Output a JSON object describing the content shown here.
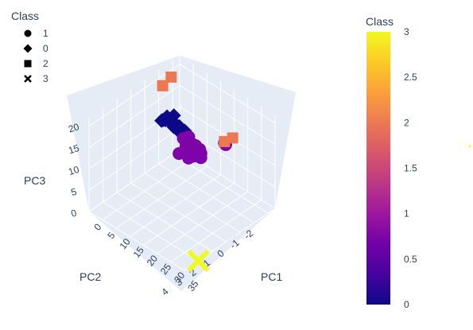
{
  "chart_data": {
    "type": "scatter3d",
    "legend": {
      "title": "Class",
      "entries": [
        {
          "label": "1",
          "symbol": "circle"
        },
        {
          "label": "0",
          "symbol": "diamond"
        },
        {
          "label": "2",
          "symbol": "square"
        },
        {
          "label": "3",
          "symbol": "x"
        }
      ]
    },
    "axes": {
      "x": {
        "label": "PC1",
        "ticks": [
          "0",
          "5",
          "10",
          "15",
          "20",
          "25",
          "30",
          "35"
        ]
      },
      "y": {
        "label": "PC2",
        "ticks": [
          "-2",
          "-1",
          "0",
          "1",
          "2",
          "3",
          "4"
        ]
      },
      "z": {
        "label": "PC3",
        "ticks": [
          "0",
          "5",
          "10",
          "15",
          "20"
        ]
      }
    },
    "colorbar": {
      "title": "Class",
      "range": [
        0,
        3
      ],
      "ticks": [
        "0",
        "0.5",
        "1",
        "1.5",
        "2",
        "2.5",
        "3"
      ],
      "colors": [
        "#0d0887",
        "#46039f",
        "#7201a8",
        "#9c179e",
        "#bd3786",
        "#d8576b",
        "#ed7953",
        "#fb9f3a",
        "#fdca26",
        "#f0f921"
      ]
    },
    "series": [
      {
        "name": "0",
        "symbol": "diamond",
        "color": "#0d0887",
        "points": [
          [
            0.5,
            -1.2,
            10
          ],
          [
            1,
            -1,
            10.5
          ],
          [
            1.5,
            -1.3,
            11
          ],
          [
            2,
            -1.1,
            10.8
          ],
          [
            2.5,
            -1.0,
            11.5
          ],
          [
            3,
            -1.2,
            11.2
          ],
          [
            3.5,
            -1.4,
            11.8
          ],
          [
            4,
            -1.1,
            11
          ],
          [
            4.5,
            -1.3,
            10.5
          ],
          [
            5,
            -1.2,
            10.2
          ],
          [
            5.5,
            -1.0,
            10.8
          ],
          [
            6,
            -1.3,
            10.5
          ],
          [
            6.5,
            -1.1,
            10.2
          ],
          [
            7,
            -1.2,
            10
          ],
          [
            7.5,
            -1.4,
            9.8
          ],
          [
            8,
            -1.2,
            10
          ],
          [
            3,
            -0.8,
            12
          ],
          [
            4,
            -0.9,
            12.5
          ],
          [
            2,
            -1.4,
            9.8
          ],
          [
            5,
            -1.5,
            9.5
          ],
          [
            6,
            -1.0,
            11.2
          ],
          [
            7,
            -1.1,
            10.8
          ]
        ]
      },
      {
        "name": "1",
        "symbol": "circle",
        "color": "#7e03a8",
        "points": [
          [
            9,
            -1,
            9.5
          ],
          [
            10,
            -1.2,
            9.8
          ],
          [
            11,
            -0.8,
            9
          ],
          [
            12,
            -1,
            9.5
          ],
          [
            13,
            -1.1,
            9.2
          ],
          [
            12,
            -0.6,
            8.5
          ],
          [
            14,
            -0.8,
            9
          ],
          [
            15,
            -1,
            9.3
          ],
          [
            13,
            -0.5,
            8.6
          ],
          [
            14,
            -0.4,
            8.2
          ],
          [
            16,
            -0.9,
            9
          ],
          [
            15,
            -0.6,
            8.6
          ],
          [
            17,
            -0.7,
            8.8
          ],
          [
            20,
            -1.8,
            11
          ],
          [
            21,
            -1.7,
            11.2
          ],
          [
            11,
            -0.3,
            8.3
          ]
        ]
      },
      {
        "name": "2",
        "symbol": "square",
        "color": "#ed7953",
        "points": [
          [
            2,
            -1.5,
            20
          ],
          [
            4,
            -0.5,
            21
          ],
          [
            20,
            -1.8,
            11.3
          ],
          [
            22,
            -2,
            12.5
          ]
        ]
      },
      {
        "name": "3",
        "symbol": "x",
        "color": "#f0f921",
        "points": [
          [
            35,
            3,
            0
          ]
        ]
      }
    ]
  }
}
